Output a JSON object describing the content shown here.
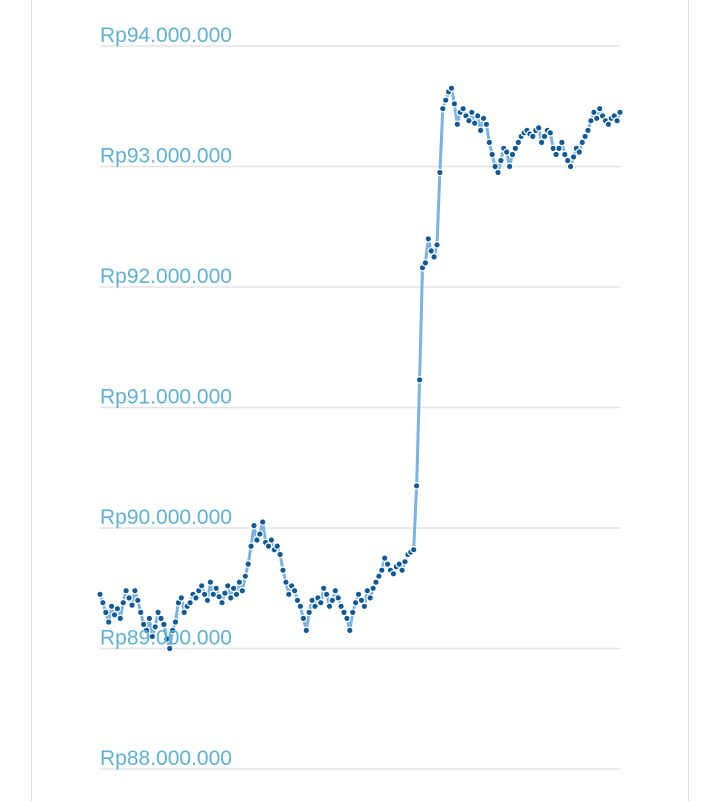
{
  "chart_data": {
    "type": "line",
    "title": "",
    "xlabel": "",
    "ylabel": "",
    "ylim": [
      88000000,
      94000000
    ],
    "y_ticks": [
      94000000,
      93000000,
      92000000,
      91000000,
      90000000,
      89000000,
      88000000
    ],
    "y_tick_labels": [
      "Rp94.000.000",
      "Rp93.000.000",
      "Rp92.000.000",
      "Rp91.000.000",
      "Rp90.000.000",
      "Rp89.000.000",
      "Rp88.000.000"
    ],
    "grid": true,
    "legend": "none",
    "series": [
      {
        "values": [
          89450000,
          89380000,
          89300000,
          89220000,
          89350000,
          89280000,
          89330000,
          89250000,
          89380000,
          89480000,
          89420000,
          89360000,
          89480000,
          89400000,
          89300000,
          89200000,
          89150000,
          89250000,
          89100000,
          89180000,
          89300000,
          89250000,
          89200000,
          89080000,
          89000000,
          89150000,
          89220000,
          89380000,
          89420000,
          89300000,
          89350000,
          89380000,
          89450000,
          89420000,
          89480000,
          89520000,
          89450000,
          89400000,
          89550000,
          89450000,
          89500000,
          89430000,
          89380000,
          89460000,
          89520000,
          89420000,
          89500000,
          89450000,
          89550000,
          89480000,
          89600000,
          89700000,
          89850000,
          90020000,
          89900000,
          89950000,
          90050000,
          89880000,
          89850000,
          89900000,
          89820000,
          89850000,
          89780000,
          89650000,
          89550000,
          89450000,
          89520000,
          89480000,
          89400000,
          89350000,
          89250000,
          89150000,
          89300000,
          89400000,
          89350000,
          89420000,
          89380000,
          89500000,
          89450000,
          89350000,
          89400000,
          89480000,
          89420000,
          89350000,
          89300000,
          89250000,
          89150000,
          89300000,
          89380000,
          89450000,
          89400000,
          89350000,
          89480000,
          89420000,
          89500000,
          89550000,
          89600000,
          89650000,
          89750000,
          89700000,
          89650000,
          89620000,
          89680000,
          89700000,
          89650000,
          89720000,
          89780000,
          89800000,
          89820000,
          90350000,
          91230000,
          92160000,
          92200000,
          92400000,
          92300000,
          92250000,
          92350000,
          92950000,
          93480000,
          93550000,
          93620000,
          93650000,
          93520000,
          93350000,
          93450000,
          93480000,
          93420000,
          93380000,
          93450000,
          93360000,
          93420000,
          93300000,
          93400000,
          93350000,
          93200000,
          93100000,
          93000000,
          92950000,
          93050000,
          93150000,
          93120000,
          93000000,
          93100000,
          93150000,
          93200000,
          93250000,
          93280000,
          93300000,
          93270000,
          93250000,
          93300000,
          93320000,
          93200000,
          93250000,
          93300000,
          93280000,
          93150000,
          93100000,
          93150000,
          93200000,
          93100000,
          93050000,
          93000000,
          93080000,
          93150000,
          93120000,
          93200000,
          93250000,
          93300000,
          93380000,
          93450000,
          93400000,
          93480000,
          93420000,
          93380000,
          93350000,
          93400000,
          93420000,
          93380000,
          93450000
        ]
      }
    ],
    "colors": {
      "line": "#7ab3e3",
      "point": "#0f5a96",
      "point_stroke": "#ffffff",
      "grid": "#e3e3e3",
      "tick_label": "#5fb0d4",
      "frame": "#d9d9d9"
    }
  }
}
